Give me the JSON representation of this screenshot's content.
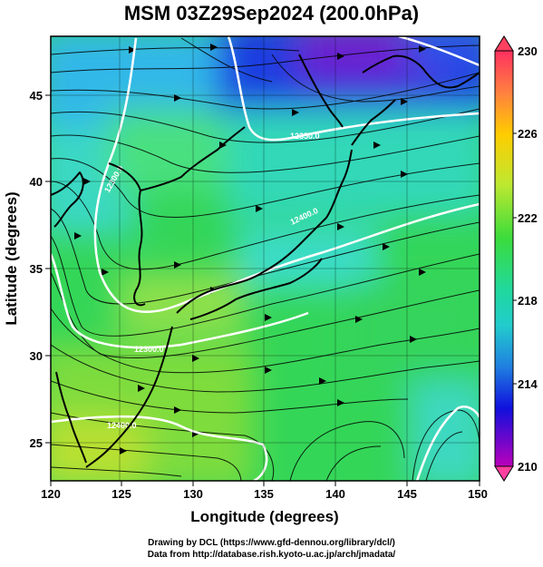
{
  "title": "MSM 03Z29Sep2024 (200.0hPa)",
  "axes": {
    "x_label": "Longitude (degrees)",
    "y_label": "Latitude  (degrees)",
    "x_ticks": [
      "120",
      "125",
      "130",
      "135",
      "140",
      "145",
      "150"
    ],
    "y_ticks": [
      "25",
      "30",
      "35",
      "40",
      "45"
    ]
  },
  "colorbar": {
    "labels": [
      "230",
      "226",
      "222",
      "218",
      "214",
      "210"
    ],
    "colors": [
      "#ff0050",
      "#ffcc00",
      "#3cdc3c",
      "#22cccc",
      "#1010dd",
      "#aa00aa"
    ]
  },
  "contour_labels": [
    "12300.0",
    "12300.0",
    "12350.0",
    "12400.0",
    "12400.0"
  ],
  "footer": {
    "line1": "Drawing by DCL (https://www.gfd-dennou.org/library/dcl/)",
    "line2": "Data from http://database.rish.kyoto-u.ac.jp/arch/jmadata/"
  }
}
